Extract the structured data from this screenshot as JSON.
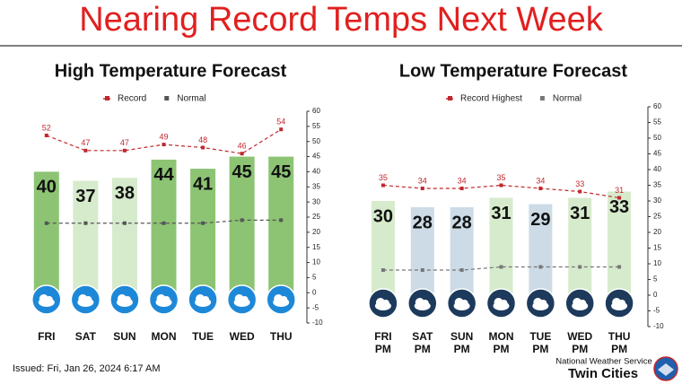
{
  "header": {
    "title": "Nearing Record Temps Next Week"
  },
  "footer": {
    "issued": "Issued: Fri, Jan 26, 2024 6:17 AM",
    "office": "National Weather Service",
    "city": "Twin Cities"
  },
  "chart_data": [
    {
      "type": "bar",
      "title": "High Temperature Forecast",
      "categories": [
        [
          "FRI"
        ],
        [
          "SAT"
        ],
        [
          "SUN"
        ],
        [
          "MON"
        ],
        [
          "TUE"
        ],
        [
          "WED"
        ],
        [
          "THU"
        ]
      ],
      "values": [
        40,
        37,
        38,
        44,
        41,
        45,
        45
      ],
      "colors": [
        "#8cc474",
        "#d6ebcc",
        "#d6ebcc",
        "#8cc474",
        "#8cc474",
        "#8cc474",
        "#8cc474"
      ],
      "series": [
        {
          "name": "Record",
          "color": "#c0282d",
          "values": [
            52,
            47,
            47,
            49,
            48,
            46,
            54
          ]
        },
        {
          "name": "Normal",
          "color": "#555555",
          "values": [
            23,
            23,
            23,
            23,
            23,
            24,
            24
          ]
        }
      ],
      "ylim": [
        -10,
        60
      ],
      "yticks": [
        -10,
        -5,
        0,
        5,
        10,
        15,
        20,
        25,
        30,
        35,
        40,
        45,
        50,
        55,
        60
      ]
    },
    {
      "type": "bar",
      "title": "Low Temperature Forecast",
      "categories": [
        [
          "FRI",
          "PM"
        ],
        [
          "SAT",
          "PM"
        ],
        [
          "SUN",
          "PM"
        ],
        [
          "MON",
          "PM"
        ],
        [
          "TUE",
          "PM"
        ],
        [
          "WED",
          "PM"
        ],
        [
          "THU",
          "PM"
        ]
      ],
      "values": [
        30,
        28,
        28,
        31,
        29,
        31,
        33
      ],
      "colors": [
        "#d6ebcc",
        "#ccdbe6",
        "#ccdbe6",
        "#d6ebcc",
        "#ccdbe6",
        "#d6ebcc",
        "#d6ebcc"
      ],
      "series": [
        {
          "name": "Record Highest",
          "color": "#c0282d",
          "values": [
            35,
            34,
            34,
            35,
            34,
            33,
            31
          ]
        },
        {
          "name": "Normal",
          "color": "#777777",
          "values": [
            8,
            8,
            8,
            9,
            9,
            9,
            9
          ]
        }
      ],
      "ylim": [
        -10,
        60
      ],
      "yticks": [
        -10,
        -5,
        0,
        5,
        10,
        15,
        20,
        25,
        30,
        35,
        40,
        45,
        50,
        55,
        60
      ]
    }
  ]
}
